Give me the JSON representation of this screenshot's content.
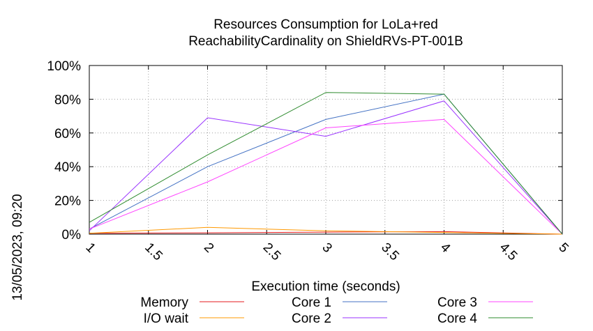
{
  "chart_data": {
    "type": "line",
    "title": "Resources Consumption for LoLa+red",
    "subtitle": "ReachabilityCardinality on ShieldRVs-PT-001B",
    "xlabel": "Execution time (seconds)",
    "ylabel": "",
    "side_label": "13/05/2023, 09:20",
    "xlim": [
      1,
      5
    ],
    "ylim": [
      0,
      100
    ],
    "x_ticks": [
      "1",
      "1.5",
      "2",
      "2.5",
      "3",
      "3.5",
      "4",
      "4.5",
      "5"
    ],
    "y_ticks": [
      "0%",
      "20%",
      "40%",
      "60%",
      "80%",
      "100%"
    ],
    "grid": true,
    "legend_position": "bottom",
    "x": [
      1,
      2,
      3,
      4,
      5
    ],
    "series": [
      {
        "name": "Memory",
        "color": "#e41a1c",
        "values": [
          0.5,
          0.8,
          1.2,
          1.5,
          0
        ]
      },
      {
        "name": "I/O wait",
        "color": "#ff9900",
        "values": [
          0.5,
          4,
          2,
          1,
          0
        ]
      },
      {
        "name": "Core 1",
        "color": "#4472c4",
        "values": [
          3,
          40,
          68,
          83,
          0
        ]
      },
      {
        "name": "Core 2",
        "color": "#9933ff",
        "values": [
          2,
          69,
          58,
          79,
          0
        ]
      },
      {
        "name": "Core 3",
        "color": "#ff44ff",
        "values": [
          3,
          31,
          63,
          68,
          0
        ]
      },
      {
        "name": "Core 4",
        "color": "#2e8b2e",
        "values": [
          7,
          47,
          84,
          83,
          0
        ]
      }
    ]
  }
}
